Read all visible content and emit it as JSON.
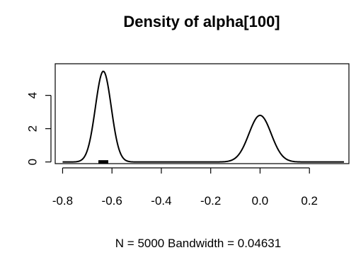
{
  "chart_data": {
    "type": "line",
    "title": "Density of alpha[100]",
    "xlabel": "N = 5000   Bandwidth = 0.04631",
    "ylabel": "",
    "x_ticks": [
      "-0.8",
      "-0.6",
      "-0.4",
      "-0.2",
      "0.0",
      "0.2"
    ],
    "x_tick_values": [
      -0.8,
      -0.6,
      -0.4,
      -0.2,
      0.0,
      0.2
    ],
    "y_ticks": [
      "0",
      "2",
      "4"
    ],
    "y_tick_values": [
      0,
      2,
      4
    ],
    "xlim": [
      -0.83,
      0.36
    ],
    "ylim": [
      -0.1,
      5.9
    ],
    "grid": false,
    "series": [
      {
        "line_color": "#000000",
        "components": [
          {
            "mean": -0.635,
            "sd": 0.032,
            "peak": 5.45
          },
          {
            "mean": 0.0,
            "sd": 0.045,
            "peak": 2.8
          }
        ],
        "x_start": -0.8,
        "x_end": 0.34
      }
    ],
    "rug": {
      "from": -0.655,
      "to": -0.615
    }
  }
}
